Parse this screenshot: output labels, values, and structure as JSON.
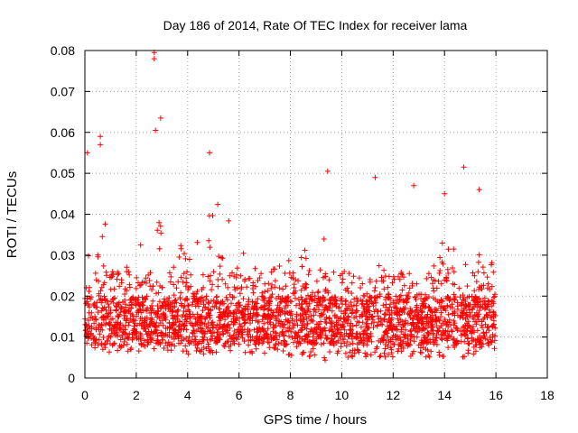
{
  "chart_data": {
    "type": "scatter",
    "title": "Day 186 of 2014, Rate Of TEC Index for receiver lama",
    "xlabel": "GPS time / hours",
    "ylabel": "ROTI / TECUs",
    "xlim": [
      0,
      18
    ],
    "ylim": [
      0,
      0.08
    ],
    "x_ticks": [
      0,
      2,
      4,
      6,
      8,
      10,
      12,
      14,
      16,
      18
    ],
    "x_tick_labels": [
      "0",
      "2",
      "4",
      "6",
      "8",
      "10",
      "12",
      "14",
      "16",
      "18"
    ],
    "y_ticks": [
      0,
      0.01,
      0.02,
      0.03,
      0.04,
      0.05,
      0.06,
      0.07,
      0.08
    ],
    "y_tick_labels": [
      "0",
      "0.01",
      "0.02",
      "0.03",
      "0.04",
      "0.05",
      "0.06",
      "0.07",
      "0.08"
    ],
    "grid": true,
    "marker": "+",
    "series_color": "#ff0000",
    "data_x_range": [
      0,
      16
    ],
    "peak_points": [
      {
        "x": 2.7,
        "y": 0.0795
      },
      {
        "x": 2.7,
        "y": 0.078
      },
      {
        "x": 2.95,
        "y": 0.0635
      },
      {
        "x": 2.75,
        "y": 0.0605
      },
      {
        "x": 0.6,
        "y": 0.059
      },
      {
        "x": 0.6,
        "y": 0.057
      },
      {
        "x": 0.1,
        "y": 0.055
      },
      {
        "x": 4.85,
        "y": 0.055
      },
      {
        "x": 9.45,
        "y": 0.0505
      },
      {
        "x": 14.75,
        "y": 0.0515
      },
      {
        "x": 11.3,
        "y": 0.049
      },
      {
        "x": 12.8,
        "y": 0.047
      },
      {
        "x": 15.35,
        "y": 0.046
      },
      {
        "x": 14.0,
        "y": 0.045
      }
    ],
    "envelope": [
      {
        "x": 0.0,
        "upper": 0.04,
        "lower": 0.008
      },
      {
        "x": 0.5,
        "upper": 0.042,
        "lower": 0.007
      },
      {
        "x": 1.0,
        "upper": 0.035,
        "lower": 0.006
      },
      {
        "x": 1.5,
        "upper": 0.033,
        "lower": 0.006
      },
      {
        "x": 2.0,
        "upper": 0.03,
        "lower": 0.006
      },
      {
        "x": 2.5,
        "upper": 0.04,
        "lower": 0.007
      },
      {
        "x": 3.0,
        "upper": 0.042,
        "lower": 0.007
      },
      {
        "x": 3.5,
        "upper": 0.034,
        "lower": 0.006
      },
      {
        "x": 4.0,
        "upper": 0.031,
        "lower": 0.005
      },
      {
        "x": 4.5,
        "upper": 0.036,
        "lower": 0.005
      },
      {
        "x": 5.0,
        "upper": 0.044,
        "lower": 0.006
      },
      {
        "x": 5.5,
        "upper": 0.04,
        "lower": 0.007
      },
      {
        "x": 6.0,
        "upper": 0.032,
        "lower": 0.006
      },
      {
        "x": 6.5,
        "upper": 0.031,
        "lower": 0.006
      },
      {
        "x": 7.0,
        "upper": 0.03,
        "lower": 0.006
      },
      {
        "x": 7.5,
        "upper": 0.028,
        "lower": 0.006
      },
      {
        "x": 8.0,
        "upper": 0.03,
        "lower": 0.005
      },
      {
        "x": 8.5,
        "upper": 0.032,
        "lower": 0.005
      },
      {
        "x": 9.0,
        "upper": 0.035,
        "lower": 0.005
      },
      {
        "x": 9.5,
        "upper": 0.038,
        "lower": 0.004
      },
      {
        "x": 10.0,
        "upper": 0.03,
        "lower": 0.005
      },
      {
        "x": 10.5,
        "upper": 0.027,
        "lower": 0.005
      },
      {
        "x": 11.0,
        "upper": 0.03,
        "lower": 0.005
      },
      {
        "x": 11.5,
        "upper": 0.028,
        "lower": 0.005
      },
      {
        "x": 12.0,
        "upper": 0.025,
        "lower": 0.005
      },
      {
        "x": 12.5,
        "upper": 0.027,
        "lower": 0.005
      },
      {
        "x": 13.0,
        "upper": 0.026,
        "lower": 0.005
      },
      {
        "x": 13.5,
        "upper": 0.026,
        "lower": 0.005
      },
      {
        "x": 14.0,
        "upper": 0.036,
        "lower": 0.005
      },
      {
        "x": 14.5,
        "upper": 0.037,
        "lower": 0.005
      },
      {
        "x": 15.0,
        "upper": 0.03,
        "lower": 0.005
      },
      {
        "x": 15.5,
        "upper": 0.032,
        "lower": 0.006
      },
      {
        "x": 16.0,
        "upper": 0.034,
        "lower": 0.007
      }
    ],
    "typical_band": [
      0.008,
      0.02
    ]
  }
}
